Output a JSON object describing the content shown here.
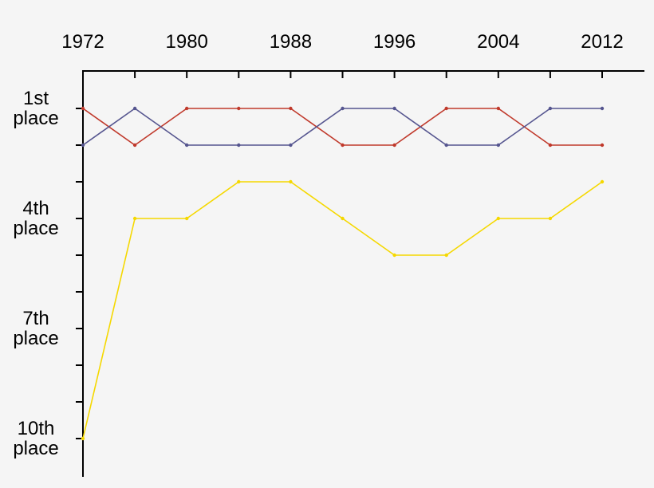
{
  "chart_data": {
    "type": "line",
    "x_tick_labels": [
      "1972",
      "1980",
      "1988",
      "1996",
      "2004",
      "2012"
    ],
    "y_tick_labels": [
      {
        "value": 1,
        "lines": [
          "1st",
          "place"
        ]
      },
      {
        "value": 4,
        "lines": [
          "4th",
          "place"
        ]
      },
      {
        "value": 7,
        "lines": [
          "7th",
          "place"
        ]
      },
      {
        "value": 10,
        "lines": [
          "10th",
          "place"
        ]
      }
    ],
    "x": [
      1972,
      1976,
      1980,
      1984,
      1988,
      1992,
      1996,
      2000,
      2004,
      2008,
      2012
    ],
    "xlim": [
      1972,
      2016
    ],
    "ylim": [
      1,
      10.5
    ],
    "y_reversed": true,
    "grid": false,
    "legend": "none",
    "series": [
      {
        "color": "#c0392b",
        "values": [
          1,
          2,
          1,
          1,
          1,
          2,
          2,
          1,
          1,
          2,
          2
        ]
      },
      {
        "color": "#55558f",
        "values": [
          2,
          1,
          2,
          2,
          2,
          1,
          1,
          2,
          2,
          1,
          1
        ]
      },
      {
        "color": "#f5d800",
        "values": [
          10,
          4,
          4,
          3,
          3,
          4,
          5,
          5,
          4,
          4,
          3
        ]
      }
    ]
  }
}
